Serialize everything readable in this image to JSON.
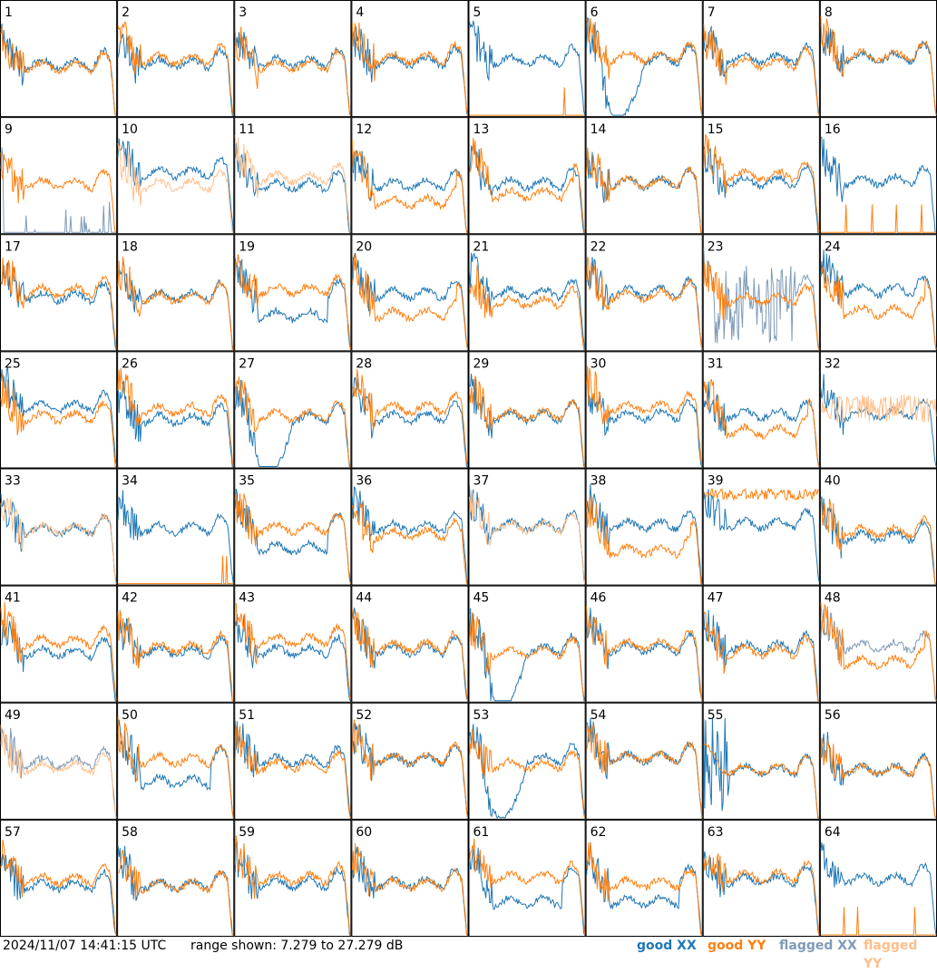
{
  "chart_data": {
    "type": "line",
    "panel_count": 64,
    "columns": 8,
    "panel_labels": [
      "1",
      "2",
      "3",
      "4",
      "5",
      "6",
      "7",
      "8",
      "9",
      "10",
      "11",
      "12",
      "13",
      "14",
      "15",
      "16",
      "17",
      "18",
      "19",
      "20",
      "21",
      "22",
      "23",
      "24",
      "25",
      "26",
      "27",
      "28",
      "29",
      "30",
      "31",
      "32",
      "33",
      "34",
      "35",
      "36",
      "37",
      "38",
      "39",
      "40",
      "41",
      "42",
      "43",
      "44",
      "45",
      "46",
      "47",
      "48",
      "49",
      "50",
      "51",
      "52",
      "53",
      "54",
      "55",
      "56",
      "57",
      "58",
      "59",
      "60",
      "61",
      "62",
      "63",
      "64"
    ],
    "ylim": [
      7.279,
      27.279
    ],
    "y_unit": "dB",
    "series": [
      {
        "name": "good XX",
        "color": "#1f77b4"
      },
      {
        "name": "good YY",
        "color": "#ff7f0e"
      },
      {
        "name": "flagged XX",
        "color": "#7f9bb8"
      },
      {
        "name": "flagged YY",
        "color": "#ffbe8a"
      }
    ],
    "flagged": {
      "xx": [
        9,
        23,
        48,
        49
      ],
      "yy": [
        10,
        11,
        32,
        33,
        37,
        49
      ]
    },
    "spike_panels": [
      5,
      9,
      16,
      23,
      34,
      39,
      55,
      64
    ],
    "deep_xx_dip_panels": [
      6,
      27,
      45,
      53
    ],
    "xx_low_panels": [
      19,
      35,
      50,
      61,
      62
    ],
    "yy_low_panels": [
      12,
      13,
      20,
      24,
      31,
      38,
      48
    ],
    "timestamp": "2024/11/07 14:41:15 UTC",
    "range_text": "range shown: 7.279 to 27.279 dB"
  },
  "footer": {
    "timestamp": "2024/11/07 14:41:15 UTC",
    "range": "range shown: 7.279 to 27.279 dB",
    "legend": {
      "good_xx": "good XX",
      "good_yy": "good YY",
      "flagged_xx": "flagged XX",
      "flagged_yy": "flagged YY"
    }
  }
}
